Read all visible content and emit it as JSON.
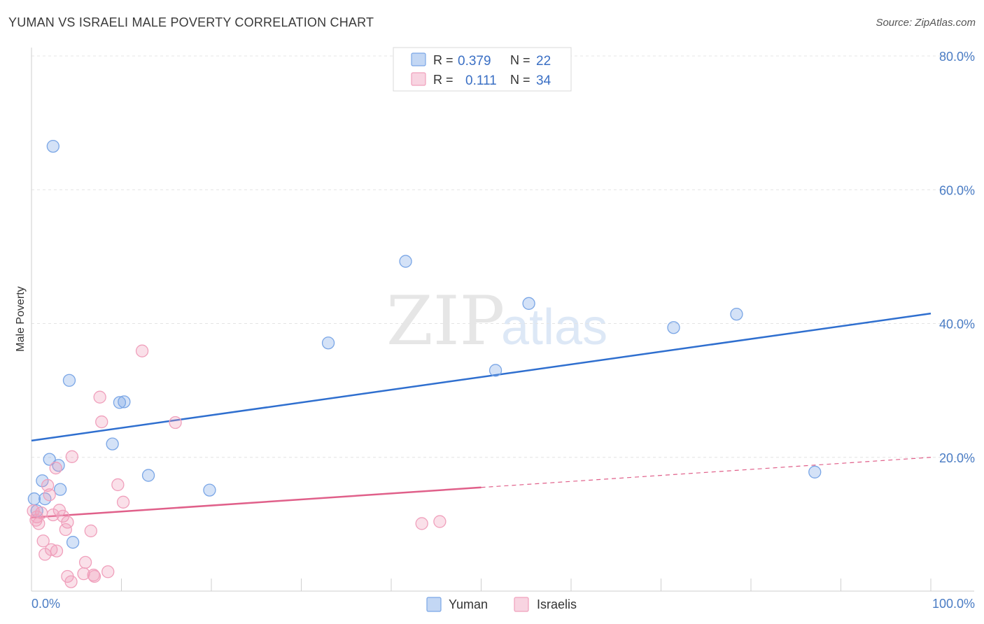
{
  "title": "YUMAN VS ISRAELI MALE POVERTY CORRELATION CHART",
  "source": "Source: ZipAtlas.com",
  "watermark": {
    "zip": "ZIP",
    "atlas": "atlas"
  },
  "chart_data": {
    "type": "scatter",
    "ylabel": "Male Poverty",
    "xlim": [
      0,
      100
    ],
    "ylim": [
      0,
      80
    ],
    "x_tick_labels": [
      {
        "value": 0,
        "label": "0.0%"
      },
      {
        "value": 100,
        "label": "100.0%"
      }
    ],
    "y_tick_labels": [
      {
        "value": 20,
        "label": "20.0%"
      },
      {
        "value": 40,
        "label": "40.0%"
      },
      {
        "value": 60,
        "label": "60.0%"
      },
      {
        "value": 80,
        "label": "80.0%"
      }
    ],
    "grid": true,
    "legend": [
      {
        "r_label": "R =",
        "r_value": "0.379",
        "n_label": "N =",
        "n_value": "22",
        "color": "#7aa6e6"
      },
      {
        "r_label": "R =",
        "r_value": "0.111",
        "n_label": "N =",
        "n_value": "34",
        "color": "#f0a0bc"
      }
    ],
    "series": [
      {
        "name": "Yuman",
        "color": "#7aa6e6",
        "line_color": "#2f6fcf",
        "trend": {
          "x0": 0,
          "y0": 22.5,
          "x1": 100,
          "y1": 41.5
        },
        "points": [
          [
            2.4,
            66.5
          ],
          [
            41.6,
            49.3
          ],
          [
            55.3,
            43.0
          ],
          [
            78.4,
            41.4
          ],
          [
            71.4,
            39.4
          ],
          [
            33.0,
            37.1
          ],
          [
            51.6,
            33.0
          ],
          [
            4.2,
            31.5
          ],
          [
            10.3,
            28.3
          ],
          [
            9.8,
            28.2
          ],
          [
            9.0,
            22.0
          ],
          [
            2.0,
            19.7
          ],
          [
            3.0,
            18.8
          ],
          [
            13.0,
            17.3
          ],
          [
            87.1,
            17.8
          ],
          [
            1.2,
            16.5
          ],
          [
            3.2,
            15.2
          ],
          [
            19.8,
            15.1
          ],
          [
            1.5,
            13.8
          ],
          [
            0.3,
            13.8
          ],
          [
            0.6,
            12.0
          ],
          [
            4.6,
            7.3
          ]
        ]
      },
      {
        "name": "Israelis",
        "color": "#f0a0bc",
        "line_color": "#e0608a",
        "trend": {
          "x0": 0,
          "y0": 11.0,
          "x1": 100,
          "y1": 20.0
        },
        "trend_solid_until": 50,
        "points": [
          [
            12.3,
            35.9
          ],
          [
            7.6,
            29.0
          ],
          [
            7.8,
            25.3
          ],
          [
            16.0,
            25.2
          ],
          [
            4.5,
            20.1
          ],
          [
            2.7,
            18.4
          ],
          [
            9.6,
            15.9
          ],
          [
            1.8,
            15.8
          ],
          [
            2.0,
            14.4
          ],
          [
            10.2,
            13.3
          ],
          [
            3.1,
            12.1
          ],
          [
            2.4,
            11.4
          ],
          [
            3.5,
            11.2
          ],
          [
            1.1,
            11.7
          ],
          [
            0.6,
            11.1
          ],
          [
            4.0,
            10.3
          ],
          [
            0.8,
            10.1
          ],
          [
            0.5,
            10.6
          ],
          [
            3.8,
            9.2
          ],
          [
            6.6,
            9.0
          ],
          [
            43.4,
            10.1
          ],
          [
            45.4,
            10.4
          ],
          [
            1.3,
            7.5
          ],
          [
            2.2,
            6.2
          ],
          [
            2.8,
            6.0
          ],
          [
            1.5,
            5.5
          ],
          [
            6.0,
            4.3
          ],
          [
            6.9,
            2.4
          ],
          [
            8.5,
            2.9
          ],
          [
            7.0,
            2.2
          ],
          [
            4.0,
            2.2
          ],
          [
            4.4,
            1.4
          ],
          [
            0.2,
            12.0
          ],
          [
            5.8,
            2.6
          ]
        ]
      }
    ]
  }
}
